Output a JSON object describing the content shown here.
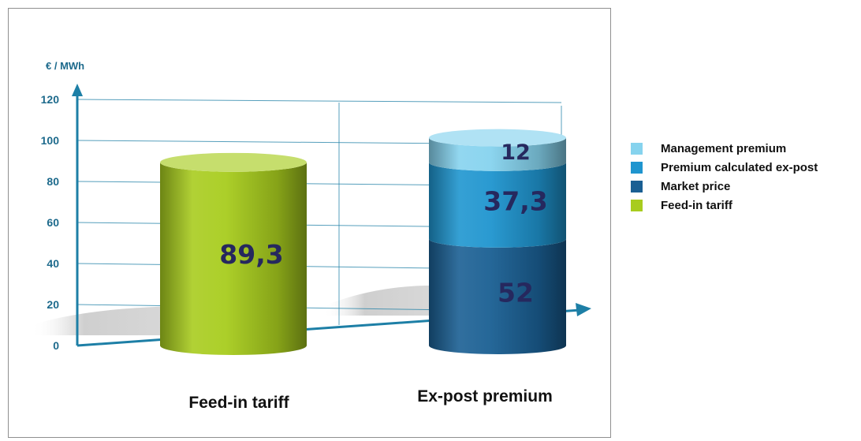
{
  "chart_data": {
    "type": "bar",
    "subtype": "stacked-3d-cylinder",
    "ylabel": "€ / MWh",
    "ylim": [
      0,
      120
    ],
    "yticks": [
      "0",
      "20",
      "40",
      "60",
      "80",
      "100",
      "120"
    ],
    "categories": [
      "Feed-in tariff",
      "Ex-post premium"
    ],
    "series": [
      {
        "name": "Feed-in tariff",
        "color": "#a8cc1e",
        "values": [
          89.3,
          0
        ],
        "labels": [
          "89,3",
          ""
        ]
      },
      {
        "name": "Market price",
        "color": "#1a5f93",
        "values": [
          0,
          52
        ],
        "labels": [
          "",
          "52"
        ]
      },
      {
        "name": "Premium calculated ex-post",
        "color": "#1f95cf",
        "values": [
          0,
          37.3
        ],
        "labels": [
          "",
          "37,3"
        ]
      },
      {
        "name": "Management premium",
        "color": "#86d3ee",
        "values": [
          0,
          12
        ],
        "labels": [
          "",
          "12"
        ]
      }
    ],
    "legend": {
      "position": "right",
      "items": [
        {
          "name": "Management premium",
          "color": "#86d3ee"
        },
        {
          "name": "Premium calculated ex-post",
          "color": "#1f95cf"
        },
        {
          "name": "Market price",
          "color": "#1a5f93"
        },
        {
          "name": "Feed-in tariff",
          "color": "#a8cc1e"
        }
      ]
    },
    "grid": true,
    "axis_color": "#1d7fa6"
  }
}
